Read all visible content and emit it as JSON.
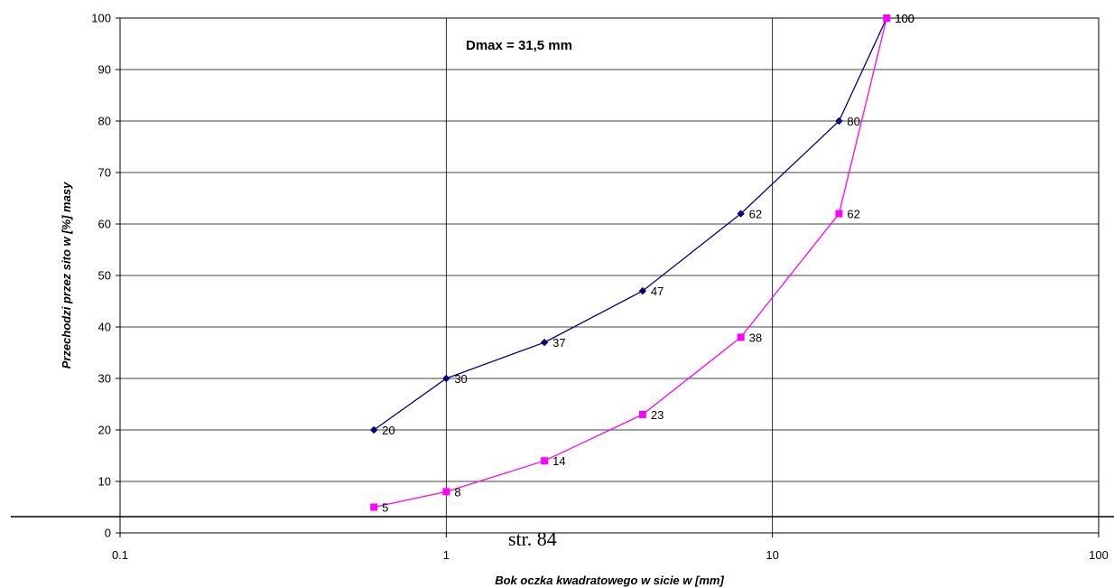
{
  "chart_data": {
    "type": "line",
    "xscale": "log",
    "xlim": [
      0.1,
      100
    ],
    "ylim": [
      0,
      100
    ],
    "xticks": [
      "0.1",
      "1",
      "10",
      "100"
    ],
    "yticks": [
      0,
      10,
      20,
      30,
      40,
      50,
      60,
      70,
      80,
      90,
      100
    ],
    "xlabel": "Bok oczka kwadratowego w sicie w [mm]",
    "ylabel": "Przechodzi przez sito w [%] masy",
    "grid": true,
    "legend": "none",
    "annotations": [
      {
        "text": "Dmax = 31,5 mm"
      }
    ],
    "series": [
      {
        "color": "#000080",
        "marker": "diamond",
        "x": [
          0.6,
          1,
          2,
          4,
          8,
          16,
          22.4
        ],
        "y": [
          20,
          30,
          37,
          47,
          62,
          80,
          100
        ]
      },
      {
        "color": "#FF00FF",
        "marker": "square",
        "x": [
          0.6,
          1,
          2,
          4,
          8,
          16,
          22.4
        ],
        "y": [
          5,
          8,
          14,
          23,
          38,
          62,
          100
        ]
      }
    ]
  },
  "footer": {
    "page_label": "str. 84"
  }
}
